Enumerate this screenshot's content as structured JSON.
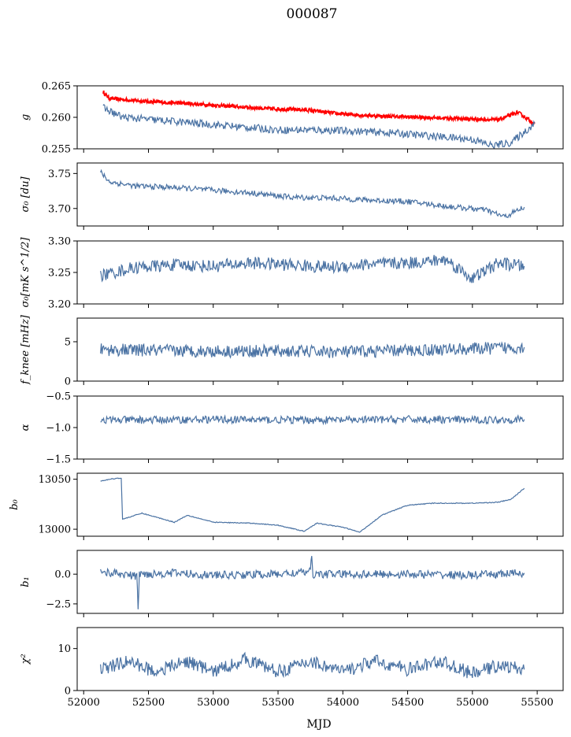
{
  "figure_title": "000087",
  "xlabel": "MJD",
  "colors": {
    "series": "#4a72a3",
    "highlight": "#ff0000"
  },
  "chart_data": [
    {
      "type": "line",
      "ylabel": "g",
      "xlim": [
        51950,
        55700
      ],
      "ylim": [
        0.255,
        0.265
      ],
      "xticks": [
        52000,
        52500,
        53000,
        53500,
        54000,
        54500,
        55000,
        55500
      ],
      "yticks": [
        "0.255",
        "0.260",
        "0.265"
      ],
      "series": [
        {
          "color": "#ff0000",
          "x": [
            52150,
            52200,
            52500,
            52800,
            53100,
            53400,
            53700,
            54000,
            54300,
            54600,
            54900,
            55200,
            55350,
            55480
          ],
          "y": [
            0.264,
            0.263,
            0.2625,
            0.2622,
            0.2618,
            0.2614,
            0.2612,
            0.2605,
            0.2602,
            0.26,
            0.2598,
            0.2596,
            0.2608,
            0.259
          ]
        },
        {
          "color": "#4a72a3",
          "x": [
            52150,
            52300,
            52600,
            52900,
            53200,
            53500,
            53800,
            54100,
            54400,
            54700,
            55000,
            55150,
            55300,
            55480
          ],
          "y": [
            0.2615,
            0.26,
            0.2595,
            0.259,
            0.2585,
            0.258,
            0.258,
            0.2578,
            0.2575,
            0.257,
            0.2565,
            0.2555,
            0.256,
            0.259
          ]
        }
      ]
    },
    {
      "type": "line",
      "ylabel": "σ₀ [du]",
      "xlim": [
        51950,
        55700
      ],
      "ylim": [
        3.675,
        3.765
      ],
      "xticks": [
        52000,
        52500,
        53000,
        53500,
        54000,
        54500,
        55000,
        55500
      ],
      "yticks": [
        "3.70",
        "3.75"
      ],
      "series": [
        {
          "color": "#4a72a3",
          "x": [
            52130,
            52200,
            52400,
            52700,
            53000,
            53300,
            53600,
            53900,
            54200,
            54500,
            54800,
            55100,
            55250,
            55400
          ],
          "y": [
            3.752,
            3.738,
            3.732,
            3.73,
            3.726,
            3.722,
            3.716,
            3.715,
            3.712,
            3.71,
            3.703,
            3.698,
            3.688,
            3.702
          ]
        }
      ]
    },
    {
      "type": "line",
      "ylabel": "σ₀[mK s^1/2]",
      "xlim": [
        51950,
        55700
      ],
      "ylim": [
        3.2,
        3.3
      ],
      "xticks": [
        52000,
        52500,
        53000,
        53500,
        54000,
        54500,
        55000,
        55500
      ],
      "yticks": [
        "3.20",
        "3.25",
        "3.30"
      ],
      "series": [
        {
          "color": "#4a72a3",
          "x": [
            52130,
            52400,
            52700,
            53000,
            53300,
            53600,
            53900,
            54200,
            54500,
            54800,
            55000,
            55200,
            55400
          ],
          "y": [
            3.245,
            3.258,
            3.262,
            3.26,
            3.265,
            3.262,
            3.258,
            3.263,
            3.265,
            3.27,
            3.24,
            3.265,
            3.26
          ]
        }
      ]
    },
    {
      "type": "line",
      "ylabel": "f_knee [mHz]",
      "xlim": [
        51950,
        55700
      ],
      "ylim": [
        0,
        8
      ],
      "xticks": [
        52000,
        52500,
        53000,
        53500,
        54000,
        54500,
        55000,
        55500
      ],
      "yticks": [
        "0",
        "5"
      ],
      "series": [
        {
          "color": "#4a72a3",
          "x": [
            52130,
            52500,
            53000,
            53500,
            54000,
            54500,
            55000,
            55400
          ],
          "y": [
            4.0,
            3.9,
            3.8,
            3.8,
            3.7,
            3.9,
            4.1,
            4.3
          ]
        }
      ]
    },
    {
      "type": "line",
      "ylabel": "α",
      "xlim": [
        51950,
        55700
      ],
      "ylim": [
        -1.5,
        -0.5
      ],
      "xticks": [
        52000,
        52500,
        53000,
        53500,
        54000,
        54500,
        55000,
        55500
      ],
      "yticks": [
        "−1.5",
        "−1.0",
        "−0.5"
      ],
      "series": [
        {
          "color": "#4a72a3",
          "x": [
            52130,
            52500,
            53000,
            53500,
            54000,
            54500,
            55000,
            55400
          ],
          "y": [
            -0.88,
            -0.88,
            -0.87,
            -0.88,
            -0.88,
            -0.87,
            -0.88,
            -0.87
          ]
        }
      ]
    },
    {
      "type": "line",
      "ylabel": "b₀",
      "xlim": [
        51950,
        55700
      ],
      "ylim": [
        12993,
        13056
      ],
      "xticks": [
        52000,
        52500,
        53000,
        53500,
        54000,
        54500,
        55000,
        55500
      ],
      "yticks": [
        "13000",
        "13050"
      ],
      "series": [
        {
          "color": "#4a72a3",
          "x": [
            52130,
            52200,
            52260,
            52290,
            52300,
            52450,
            52700,
            52800,
            53000,
            53300,
            53500,
            53700,
            53800,
            54000,
            54130,
            54300,
            54500,
            54700,
            55000,
            55200,
            55300,
            55400
          ],
          "y": [
            13048,
            13050,
            13051,
            13051,
            13010,
            13016,
            13007,
            13014,
            13007,
            13006,
            13004,
            12998,
            13006,
            13002,
            12997,
            13014,
            13024,
            13026,
            13026,
            13027,
            13030,
            13041
          ]
        }
      ]
    },
    {
      "type": "line",
      "ylabel": "b₁",
      "xlim": [
        51950,
        55700
      ],
      "ylim": [
        -3.3,
        2.0
      ],
      "xticks": [
        52000,
        52500,
        53000,
        53500,
        54000,
        54500,
        55000,
        55500
      ],
      "yticks": [
        "−2.5",
        "0.0"
      ],
      "series": [
        {
          "color": "#4a72a3",
          "x": [
            52130,
            52300,
            52410,
            52420,
            52430,
            52700,
            53000,
            53500,
            53750,
            53760,
            53770,
            54000,
            54500,
            55000,
            55400
          ],
          "y": [
            0.2,
            0.0,
            -0.2,
            -2.8,
            0.0,
            0.1,
            -0.1,
            0.0,
            0.2,
            1.5,
            0.0,
            0.0,
            0.0,
            -0.1,
            0.1
          ]
        }
      ]
    },
    {
      "type": "line",
      "ylabel": "χ²",
      "xlim": [
        51950,
        55700
      ],
      "ylim": [
        0,
        15
      ],
      "xticks": [
        52000,
        52500,
        53000,
        53500,
        54000,
        54500,
        55000,
        55500
      ],
      "yticks": [
        "0",
        "10"
      ],
      "series": [
        {
          "color": "#4a72a3",
          "x": [
            52130,
            52350,
            52550,
            52800,
            53000,
            53250,
            53500,
            53750,
            54000,
            54250,
            54500,
            54750,
            55000,
            55200,
            55400
          ],
          "y": [
            5.0,
            7.0,
            4.5,
            7.0,
            4.5,
            7.5,
            4.5,
            7.0,
            4.5,
            7.0,
            5.0,
            7.0,
            4.0,
            6.0,
            5.0
          ]
        }
      ]
    }
  ]
}
